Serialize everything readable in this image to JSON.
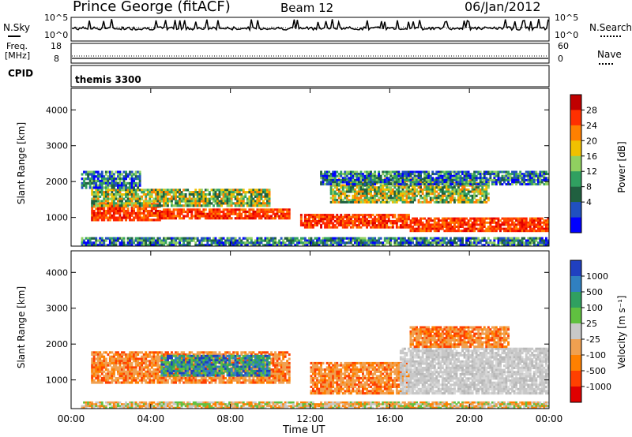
{
  "header": {
    "station": "Prince George (fitACF)",
    "beam": "Beam 12",
    "date": "06/Jan/2012"
  },
  "noise_panel": {
    "left_label": "N.Sky",
    "right_label": "N.Search",
    "tick_top": "10^5",
    "tick_bottom": "10^0"
  },
  "freq_panel": {
    "left_label": "Freq.",
    "left_unit": "[MHz]",
    "right_label": "Nave",
    "left_tick_top": "18",
    "left_tick_bottom": "8",
    "right_tick_top": "60",
    "right_tick_bottom": "0"
  },
  "cpid": {
    "label": "CPID",
    "value": "themis 3300"
  },
  "chart_data": [
    {
      "type": "heatmap",
      "name": "power",
      "ylabel": "Slant Range [km]",
      "ylim": [
        200,
        4600
      ],
      "yticks": [
        1000,
        2000,
        3000,
        4000
      ],
      "x_ticks": [
        "00:00",
        "04:00",
        "08:00",
        "12:00",
        "16:00",
        "20:00",
        "00:00"
      ],
      "colorbar_label": "Power [dB]",
      "colorbar_ticks": [
        "28",
        "24",
        "20",
        "16",
        "12",
        "8",
        "4"
      ],
      "colorbar_colors": [
        "#c00000",
        "#ff3000",
        "#ff8000",
        "#f0c000",
        "#90d060",
        "#30a060",
        "#206040",
        "#2050c0",
        "#0000ff"
      ],
      "regions": [
        {
          "t0": 1.0,
          "t1": 4.5,
          "r0": 900,
          "r1": 1400,
          "level": "high"
        },
        {
          "t0": 4.5,
          "t1": 11.0,
          "r0": 950,
          "r1": 1250,
          "level": "high"
        },
        {
          "t0": 11.5,
          "t1": 17.0,
          "r0": 700,
          "r1": 1100,
          "level": "high"
        },
        {
          "t0": 17.0,
          "t1": 24.0,
          "r0": 600,
          "r1": 1000,
          "level": "high"
        },
        {
          "t0": 1.0,
          "t1": 10.0,
          "r0": 1300,
          "r1": 1800,
          "level": "medium"
        },
        {
          "t0": 13.0,
          "t1": 21.0,
          "r0": 1400,
          "r1": 2100,
          "level": "medium"
        },
        {
          "t0": 0.5,
          "t1": 3.5,
          "r0": 1800,
          "r1": 2300,
          "level": "low"
        },
        {
          "t0": 12.5,
          "t1": 24.0,
          "r0": 1900,
          "r1": 2300,
          "level": "low"
        },
        {
          "t0": 0.5,
          "t1": 24.0,
          "r0": 200,
          "r1": 450,
          "level": "low"
        }
      ]
    },
    {
      "type": "heatmap",
      "name": "velocity",
      "ylabel": "Slant Range [km]",
      "ylim": [
        200,
        4600
      ],
      "yticks": [
        1000,
        2000,
        3000,
        4000
      ],
      "x_ticks": [
        "00:00",
        "04:00",
        "08:00",
        "12:00",
        "16:00",
        "20:00",
        "00:00"
      ],
      "xlabel": "Time UT",
      "colorbar_label": "Velocity [m s⁻¹]",
      "colorbar_ticks": [
        "1000",
        "500",
        "100",
        "25",
        "-25",
        "-100",
        "-500",
        "-1000"
      ],
      "colorbar_colors": [
        "#2040c0",
        "#3080c0",
        "#30a060",
        "#60c040",
        "#c8c8c8",
        "#f0a050",
        "#ff8000",
        "#ff4000",
        "#e00000"
      ],
      "regions": [
        {
          "t0": 1.0,
          "t1": 11.0,
          "r0": 900,
          "r1": 1800,
          "level": "negative"
        },
        {
          "t0": 4.5,
          "t1": 10.0,
          "r0": 1100,
          "r1": 1700,
          "level": "positive"
        },
        {
          "t0": 12.0,
          "t1": 17.0,
          "r0": 600,
          "r1": 1500,
          "level": "negative"
        },
        {
          "t0": 16.5,
          "t1": 24.0,
          "r0": 600,
          "r1": 1900,
          "level": "zero"
        },
        {
          "t0": 17.0,
          "t1": 22.0,
          "r0": 1900,
          "r1": 2500,
          "level": "negative"
        },
        {
          "t0": 0.5,
          "t1": 24.0,
          "r0": 200,
          "r1": 400,
          "level": "mixed"
        }
      ]
    }
  ]
}
